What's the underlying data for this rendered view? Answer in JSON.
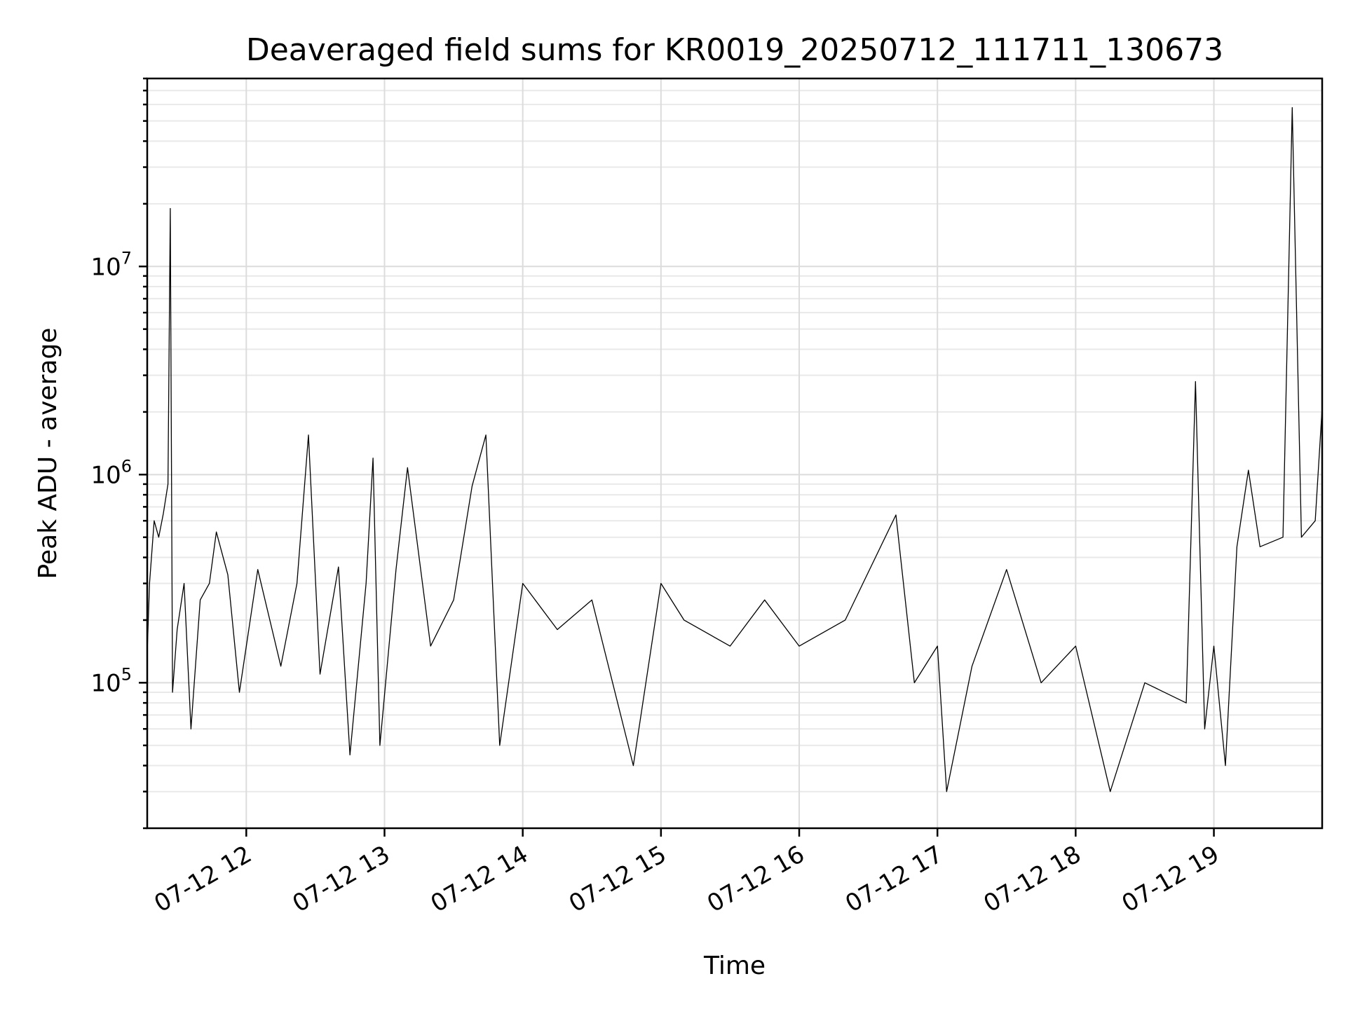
{
  "chart_data": {
    "type": "line",
    "title": "Deaveraged field sums for KR0019_20250712_111711_130673",
    "xlabel": "Time",
    "ylabel": "Peak ADU - average",
    "yscale": "log",
    "xlim": [
      "2025-07-12 11:17",
      "2025-07-12 19:47"
    ],
    "ylim": [
      20000,
      80000000
    ],
    "grid": "on (major and minor)",
    "legend": "none",
    "x_tick_labels": [
      "07-12 12",
      "07-12 13",
      "07-12 14",
      "07-12 15",
      "07-12 16",
      "07-12 17",
      "07-12 18",
      "07-12 19"
    ],
    "y_tick_labels": [
      {
        "base": "10",
        "exp": "5",
        "value": 100000
      },
      {
        "base": "10",
        "exp": "6",
        "value": 1000000
      },
      {
        "base": "10",
        "exp": "7",
        "value": 10000000
      }
    ],
    "series": [
      {
        "color": "#000000",
        "points": [
          [
            "2025-07-12 11:17",
            140000
          ],
          [
            "2025-07-12 11:18",
            300000
          ],
          [
            "2025-07-12 11:20",
            600000
          ],
          [
            "2025-07-12 11:22",
            500000
          ],
          [
            "2025-07-12 11:24",
            650000
          ],
          [
            "2025-07-12 11:26",
            900000
          ],
          [
            "2025-07-12 11:27",
            19000000
          ],
          [
            "2025-07-12 11:28",
            90000
          ],
          [
            "2025-07-12 11:30",
            180000
          ],
          [
            "2025-07-12 11:33",
            300000
          ],
          [
            "2025-07-12 11:36",
            60000
          ],
          [
            "2025-07-12 11:40",
            250000
          ],
          [
            "2025-07-12 11:44",
            300000
          ],
          [
            "2025-07-12 11:47",
            530000
          ],
          [
            "2025-07-12 11:52",
            330000
          ],
          [
            "2025-07-12 11:57",
            90000
          ],
          [
            "2025-07-12 12:05",
            350000
          ],
          [
            "2025-07-12 12:15",
            120000
          ],
          [
            "2025-07-12 12:22",
            300000
          ],
          [
            "2025-07-12 12:27",
            1550000
          ],
          [
            "2025-07-12 12:32",
            110000
          ],
          [
            "2025-07-12 12:40",
            360000
          ],
          [
            "2025-07-12 12:45",
            45000
          ],
          [
            "2025-07-12 12:52",
            300000
          ],
          [
            "2025-07-12 12:55",
            1200000
          ],
          [
            "2025-07-12 12:58",
            50000
          ],
          [
            "2025-07-12 13:05",
            350000
          ],
          [
            "2025-07-12 13:10",
            1080000
          ],
          [
            "2025-07-12 13:20",
            150000
          ],
          [
            "2025-07-12 13:30",
            250000
          ],
          [
            "2025-07-12 13:38",
            880000
          ],
          [
            "2025-07-12 13:44",
            1550000
          ],
          [
            "2025-07-12 13:50",
            50000
          ],
          [
            "2025-07-12 14:00",
            300000
          ],
          [
            "2025-07-12 14:15",
            180000
          ],
          [
            "2025-07-12 14:30",
            250000
          ],
          [
            "2025-07-12 14:48",
            40000
          ],
          [
            "2025-07-12 15:00",
            300000
          ],
          [
            "2025-07-12 15:10",
            200000
          ],
          [
            "2025-07-12 15:30",
            150000
          ],
          [
            "2025-07-12 15:45",
            250000
          ],
          [
            "2025-07-12 16:00",
            150000
          ],
          [
            "2025-07-12 16:20",
            200000
          ],
          [
            "2025-07-12 16:42",
            640000
          ],
          [
            "2025-07-12 16:50",
            100000
          ],
          [
            "2025-07-12 17:00",
            150000
          ],
          [
            "2025-07-12 17:04",
            30000
          ],
          [
            "2025-07-12 17:15",
            120000
          ],
          [
            "2025-07-12 17:30",
            350000
          ],
          [
            "2025-07-12 17:45",
            100000
          ],
          [
            "2025-07-12 18:00",
            150000
          ],
          [
            "2025-07-12 18:15",
            30000
          ],
          [
            "2025-07-12 18:30",
            100000
          ],
          [
            "2025-07-12 18:48",
            80000
          ],
          [
            "2025-07-12 18:52",
            2800000
          ],
          [
            "2025-07-12 18:56",
            60000
          ],
          [
            "2025-07-12 19:00",
            150000
          ],
          [
            "2025-07-12 19:05",
            40000
          ],
          [
            "2025-07-12 19:10",
            450000
          ],
          [
            "2025-07-12 19:15",
            1050000
          ],
          [
            "2025-07-12 19:20",
            450000
          ],
          [
            "2025-07-12 19:30",
            500000
          ],
          [
            "2025-07-12 19:34",
            58000000
          ],
          [
            "2025-07-12 19:38",
            500000
          ],
          [
            "2025-07-12 19:44",
            600000
          ],
          [
            "2025-07-12 19:47",
            2100000
          ]
        ]
      }
    ]
  }
}
